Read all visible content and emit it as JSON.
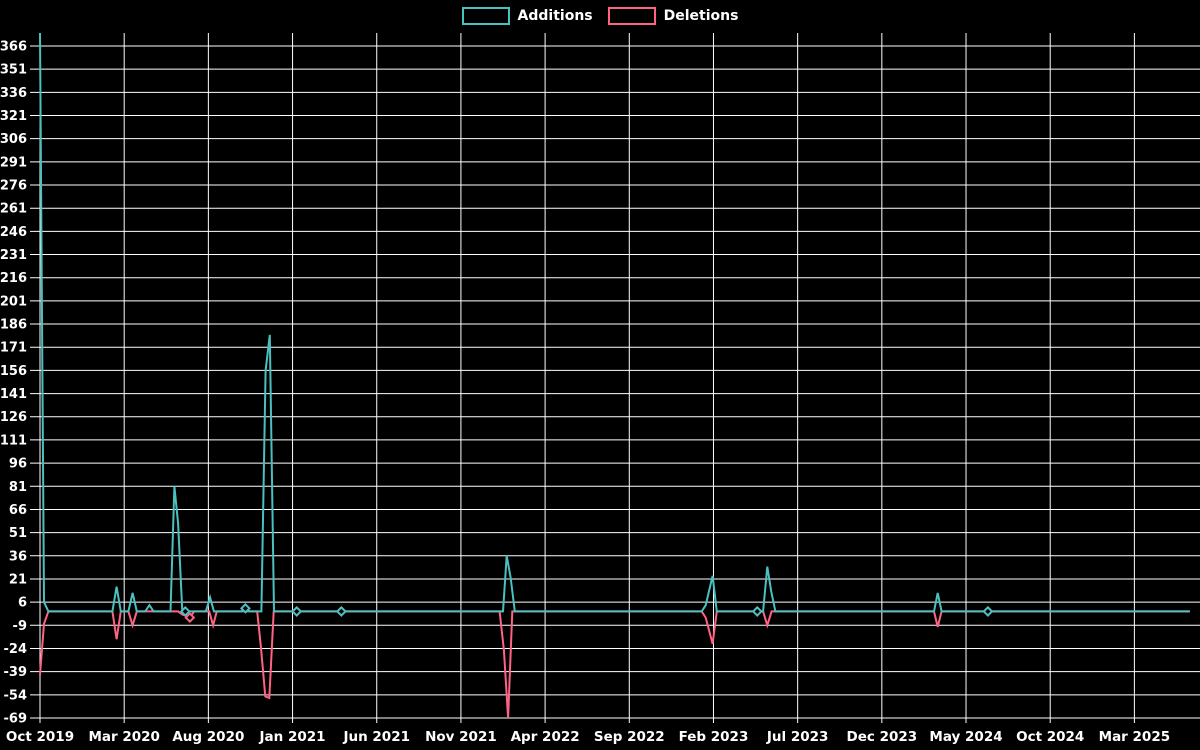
{
  "legend": {
    "position": "top",
    "items": [
      {
        "label": "Additions",
        "color": "#4bc0c0"
      },
      {
        "label": "Deletions",
        "color": "#ff6384"
      }
    ]
  },
  "chart_data": {
    "type": "line",
    "title": "",
    "xlabel": "",
    "ylabel": "",
    "background": "#000000",
    "grid": true,
    "grid_color": "#ffffff",
    "text_color": "#ffffff",
    "x_axis": {
      "unit": "months since Oct 2019, weekly data points",
      "tick_months": [
        0,
        5,
        10,
        15,
        20,
        25,
        30,
        35,
        40,
        45,
        50,
        55,
        60,
        65
      ],
      "tick_labels": [
        "Oct 2019",
        "Mar 2020",
        "Aug 2020",
        "Jan 2021",
        "Jun 2021",
        "Nov 2021",
        "Apr 2022",
        "Sep 2022",
        "Feb 2023",
        "Jul 2023",
        "Dec 2023",
        "May 2024",
        "Oct 2024",
        "Mar 2025"
      ],
      "min_months": 0,
      "max_months": 68.6
    },
    "y_axis": {
      "ticks": [
        366,
        351,
        336,
        321,
        306,
        291,
        276,
        261,
        246,
        231,
        216,
        201,
        186,
        171,
        156,
        141,
        126,
        111,
        96,
        81,
        66,
        51,
        36,
        21,
        6,
        -9,
        -24,
        -39,
        -54,
        -69
      ],
      "min": -69,
      "max": 374.4
    },
    "series": [
      {
        "name": "Deletions",
        "color": "#ff6384",
        "points": [
          [
            0,
            -41
          ],
          [
            0.24,
            -8
          ],
          [
            0.5,
            0
          ],
          [
            4.3,
            0
          ],
          [
            4.55,
            -18
          ],
          [
            4.8,
            0
          ],
          [
            5.25,
            0
          ],
          [
            5.5,
            -9
          ],
          [
            5.75,
            0
          ],
          [
            8.2,
            0
          ],
          [
            8.45,
            -2
          ],
          [
            8.68,
            -3
          ],
          [
            8.9,
            -4
          ],
          [
            9.15,
            0
          ],
          [
            10.05,
            0
          ],
          [
            10.28,
            -9
          ],
          [
            10.5,
            0
          ],
          [
            12.9,
            0
          ],
          [
            13.12,
            -23
          ],
          [
            13.38,
            -55
          ],
          [
            13.62,
            -56
          ],
          [
            13.88,
            0
          ],
          [
            27.3,
            0
          ],
          [
            27.55,
            -25
          ],
          [
            27.8,
            -69
          ],
          [
            28.05,
            0
          ],
          [
            39.3,
            0
          ],
          [
            39.54,
            -4
          ],
          [
            39.95,
            -21
          ],
          [
            40.2,
            0
          ],
          [
            42.95,
            0
          ],
          [
            43.2,
            -9
          ],
          [
            43.45,
            0
          ],
          [
            53.1,
            0
          ],
          [
            53.32,
            -10
          ],
          [
            53.55,
            0
          ],
          [
            68.3,
            0
          ]
        ],
        "markers": [
          [
            8.9,
            -4
          ],
          [
            15.25,
            0
          ],
          [
            17.9,
            0
          ],
          [
            42.6,
            0
          ],
          [
            56.3,
            0
          ]
        ]
      },
      {
        "name": "Additions",
        "color": "#4bc0c0",
        "points": [
          [
            0,
            374.4
          ],
          [
            0.24,
            6
          ],
          [
            0.5,
            0
          ],
          [
            4.3,
            0
          ],
          [
            4.55,
            16
          ],
          [
            4.8,
            0
          ],
          [
            5.25,
            0
          ],
          [
            5.5,
            12
          ],
          [
            5.75,
            0
          ],
          [
            6.25,
            0
          ],
          [
            6.5,
            4
          ],
          [
            6.75,
            0
          ],
          [
            7.75,
            0
          ],
          [
            7.98,
            81
          ],
          [
            8.2,
            57
          ],
          [
            8.45,
            0
          ],
          [
            8.63,
            0
          ],
          [
            9.85,
            0
          ],
          [
            10.1,
            9
          ],
          [
            10.33,
            0
          ],
          [
            11.95,
            0
          ],
          [
            12.2,
            2
          ],
          [
            12.45,
            0
          ],
          [
            13.15,
            0
          ],
          [
            13.4,
            156
          ],
          [
            13.65,
            179
          ],
          [
            13.9,
            0
          ],
          [
            27.5,
            0
          ],
          [
            27.72,
            36
          ],
          [
            27.95,
            22
          ],
          [
            28.2,
            0
          ],
          [
            39.3,
            0
          ],
          [
            39.54,
            4
          ],
          [
            39.95,
            23
          ],
          [
            40.2,
            0
          ],
          [
            42.95,
            0
          ],
          [
            43.2,
            29
          ],
          [
            43.43,
            13
          ],
          [
            43.68,
            0
          ],
          [
            53.1,
            0
          ],
          [
            53.32,
            12
          ],
          [
            53.55,
            0
          ],
          [
            68.3,
            0
          ]
        ],
        "markers": [
          [
            8.63,
            0
          ],
          [
            12.2,
            2
          ],
          [
            15.25,
            0
          ],
          [
            17.9,
            0
          ],
          [
            42.6,
            0
          ],
          [
            56.3,
            0
          ]
        ]
      }
    ],
    "notable_points": {
      "additions_peaks": {
        "Oct 2019": 374,
        "Feb 2020": 16,
        "Mar 2020": 12,
        "Jun 2020": 81,
        "Nov 2020": 179,
        "Jan 2022": 36,
        "Feb 2023": 23,
        "May 2023": 29,
        "Mar 2024": 12
      },
      "deletions_troughs": {
        "Oct 2019": -41,
        "Feb 2020": -18,
        "Nov 2020": -56,
        "Jan 2022": -69,
        "Feb 2023": -21,
        "May 2023": -9,
        "Mar 2024": -10
      }
    }
  }
}
